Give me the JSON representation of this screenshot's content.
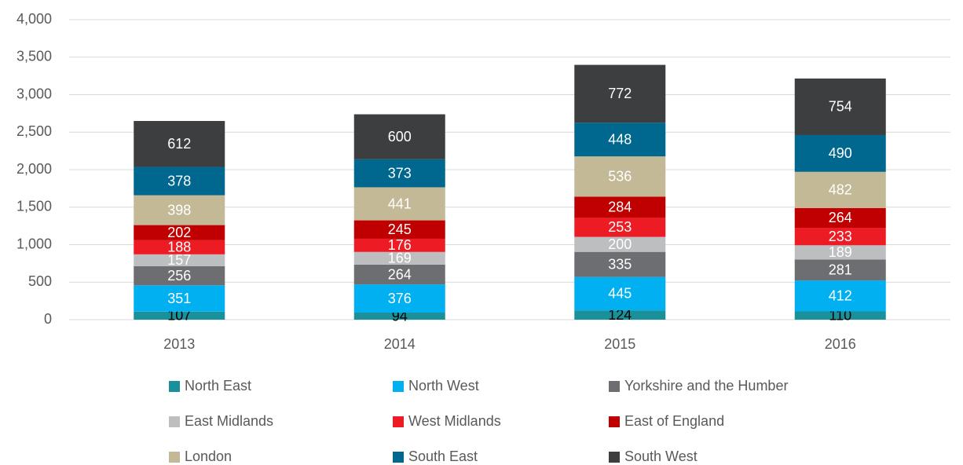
{
  "chart_data": {
    "type": "stacked_bar",
    "categories": [
      "2013",
      "2014",
      "2015",
      "2016"
    ],
    "series": [
      {
        "name": "North East",
        "color": "#19909a",
        "label_color": "#000000",
        "values": [
          107,
          94,
          124,
          110
        ]
      },
      {
        "name": "North West",
        "color": "#00b0f0",
        "label_color": "#ffffff",
        "values": [
          351,
          376,
          445,
          412
        ]
      },
      {
        "name": "Yorkshire and the Humber",
        "color": "#6d6e71",
        "label_color": "#ffffff",
        "values": [
          256,
          264,
          335,
          281
        ]
      },
      {
        "name": "East Midlands",
        "color": "#bcbec0",
        "label_color": "#ffffff",
        "values": [
          157,
          169,
          200,
          189
        ]
      },
      {
        "name": "West Midlands",
        "color": "#ed1c24",
        "label_color": "#ffffff",
        "values": [
          188,
          176,
          253,
          233
        ]
      },
      {
        "name": "East of England",
        "color": "#c00000",
        "label_color": "#ffffff",
        "values": [
          202,
          245,
          284,
          264
        ]
      },
      {
        "name": "London",
        "color": "#c4b996",
        "label_color": "#ffffff",
        "values": [
          398,
          441,
          536,
          482
        ]
      },
      {
        "name": "South East",
        "color": "#00678f",
        "label_color": "#ffffff",
        "values": [
          378,
          373,
          448,
          490
        ]
      },
      {
        "name": "South West",
        "color": "#3d3e40",
        "label_color": "#ffffff",
        "values": [
          612,
          600,
          772,
          754
        ]
      }
    ],
    "ylim": [
      0,
      4000
    ],
    "yticks": [
      0,
      {
        "value": 500,
        "label": "500"
      },
      {
        "value": 1000,
        "label": "1,000"
      },
      {
        "value": 1500,
        "label": "1,500"
      },
      {
        "value": 2000,
        "label": "2,000"
      },
      {
        "value": 2500,
        "label": "2,500"
      },
      {
        "value": 3000,
        "label": "3,000"
      },
      {
        "value": 3500,
        "label": "3,500"
      },
      {
        "value": 4000,
        "label": "4,000"
      }
    ],
    "grid": true
  }
}
